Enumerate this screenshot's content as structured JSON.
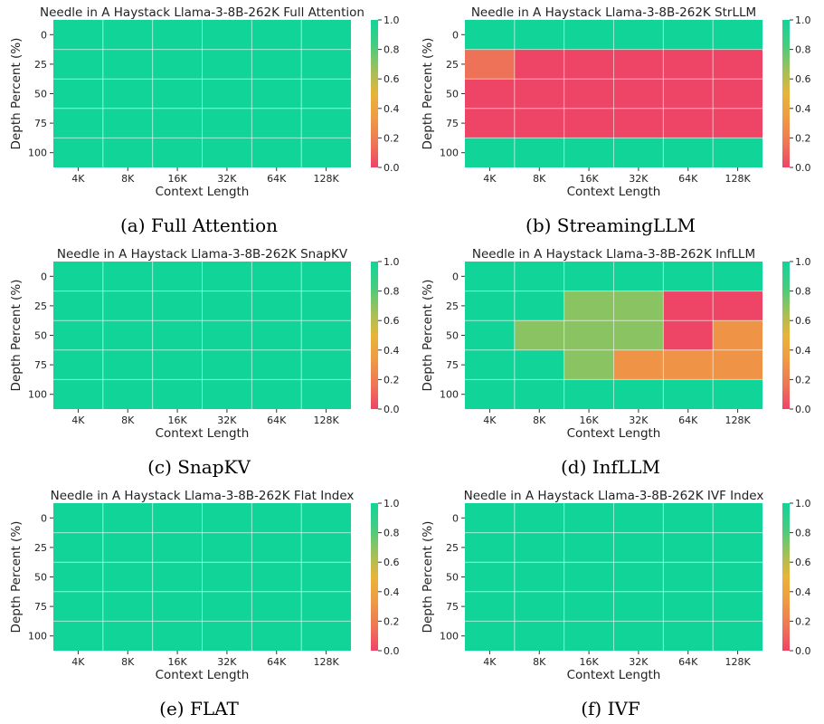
{
  "chart_data": [
    {
      "type": "heatmap",
      "title": "Needle in A Haystack Llama-3-8B-262K Full Attention",
      "caption": "(a) Full Attention",
      "xlabel": "Context Length",
      "ylabel": "Depth Percent (%)",
      "x_ticks": [
        "4K",
        "8K",
        "16K",
        "32K",
        "64K",
        "128K"
      ],
      "y_ticks": [
        "0",
        "25",
        "50",
        "75",
        "100"
      ],
      "colorbar_ticks": [
        "1.0",
        "0.8",
        "0.6",
        "0.4",
        "0.2",
        "0.0"
      ],
      "value_range": [
        0,
        1
      ],
      "values": [
        [
          1,
          1,
          1,
          1,
          1,
          1
        ],
        [
          1,
          1,
          1,
          1,
          1,
          1
        ],
        [
          1,
          1,
          1,
          1,
          1,
          1
        ],
        [
          1,
          1,
          1,
          1,
          1,
          1
        ],
        [
          1,
          1,
          1,
          1,
          1,
          1
        ]
      ]
    },
    {
      "type": "heatmap",
      "title": "Needle in A Haystack Llama-3-8B-262K StrLLM",
      "caption": "(b) StreamingLLM",
      "xlabel": "Context Length",
      "ylabel": "Depth Percent (%)",
      "x_ticks": [
        "4K",
        "8K",
        "16K",
        "32K",
        "64K",
        "128K"
      ],
      "y_ticks": [
        "0",
        "25",
        "50",
        "75",
        "100"
      ],
      "colorbar_ticks": [
        "1.0",
        "0.8",
        "0.6",
        "0.4",
        "0.2",
        "0.0"
      ],
      "value_range": [
        0,
        1
      ],
      "values": [
        [
          1,
          1,
          1,
          1,
          1,
          1
        ],
        [
          0.15,
          0,
          0,
          0,
          0,
          0
        ],
        [
          0,
          0,
          0,
          0,
          0,
          0
        ],
        [
          0,
          0,
          0,
          0,
          0,
          0
        ],
        [
          1,
          1,
          1,
          1,
          1,
          1
        ]
      ]
    },
    {
      "type": "heatmap",
      "title": "Needle in A Haystack Llama-3-8B-262K SnapKV",
      "caption": "(c) SnapKV",
      "xlabel": "Context Length",
      "ylabel": "Depth Percent (%)",
      "x_ticks": [
        "4K",
        "8K",
        "16K",
        "32K",
        "64K",
        "128K"
      ],
      "y_ticks": [
        "0",
        "25",
        "50",
        "75",
        "100"
      ],
      "colorbar_ticks": [
        "1.0",
        "0.8",
        "0.6",
        "0.4",
        "0.2",
        "0.0"
      ],
      "value_range": [
        0,
        1
      ],
      "values": [
        [
          1,
          1,
          1,
          1,
          1,
          1
        ],
        [
          1,
          1,
          1,
          1,
          1,
          1
        ],
        [
          1,
          1,
          1,
          1,
          1,
          1
        ],
        [
          1,
          1,
          1,
          1,
          1,
          1
        ],
        [
          1,
          1,
          1,
          1,
          1,
          1
        ]
      ]
    },
    {
      "type": "heatmap",
      "title": "Needle in A Haystack Llama-3-8B-262K InfLLM",
      "caption": "(d) InfLLM",
      "xlabel": "Context Length",
      "ylabel": "Depth Percent (%)",
      "x_ticks": [
        "4K",
        "8K",
        "16K",
        "32K",
        "64K",
        "128K"
      ],
      "y_ticks": [
        "0",
        "25",
        "50",
        "75",
        "100"
      ],
      "colorbar_ticks": [
        "1.0",
        "0.8",
        "0.6",
        "0.4",
        "0.2",
        "0.0"
      ],
      "value_range": [
        0,
        1
      ],
      "values": [
        [
          1,
          1,
          1,
          1,
          1,
          1
        ],
        [
          1,
          1,
          0.7,
          0.7,
          0,
          0
        ],
        [
          1,
          0.7,
          0.7,
          0.7,
          0,
          0.3
        ],
        [
          1,
          1,
          0.7,
          0.3,
          0.3,
          0.3
        ],
        [
          1,
          1,
          1,
          1,
          1,
          1
        ]
      ]
    },
    {
      "type": "heatmap",
      "title": "Needle in A Haystack Llama-3-8B-262K Flat Index",
      "caption": "(e) FLAT",
      "xlabel": "Context Length",
      "ylabel": "Depth Percent (%)",
      "x_ticks": [
        "4K",
        "8K",
        "16K",
        "32K",
        "64K",
        "128K"
      ],
      "y_ticks": [
        "0",
        "25",
        "50",
        "75",
        "100"
      ],
      "colorbar_ticks": [
        "1.0",
        "0.8",
        "0.6",
        "0.4",
        "0.2",
        "0.0"
      ],
      "value_range": [
        0,
        1
      ],
      "values": [
        [
          1,
          1,
          1,
          1,
          1,
          1
        ],
        [
          1,
          1,
          1,
          1,
          1,
          1
        ],
        [
          1,
          1,
          1,
          1,
          1,
          1
        ],
        [
          1,
          1,
          1,
          1,
          1,
          1
        ],
        [
          1,
          1,
          1,
          1,
          1,
          1
        ]
      ]
    },
    {
      "type": "heatmap",
      "title": "Needle in A Haystack Llama-3-8B-262K IVF Index",
      "caption": "(f) IVF",
      "xlabel": "Context Length",
      "ylabel": "Depth Percent (%)",
      "x_ticks": [
        "4K",
        "8K",
        "16K",
        "32K",
        "64K",
        "128K"
      ],
      "y_ticks": [
        "0",
        "25",
        "50",
        "75",
        "100"
      ],
      "colorbar_ticks": [
        "1.0",
        "0.8",
        "0.6",
        "0.4",
        "0.2",
        "0.0"
      ],
      "value_range": [
        0,
        1
      ],
      "values": [
        [
          1,
          1,
          1,
          1,
          1,
          1
        ],
        [
          1,
          1,
          1,
          1,
          1,
          1
        ],
        [
          1,
          1,
          1,
          1,
          1,
          1
        ],
        [
          1,
          1,
          1,
          1,
          1,
          1
        ],
        [
          1,
          1,
          1,
          1,
          1,
          1
        ]
      ]
    }
  ],
  "colormap": [
    "#ee4466",
    "#ee7755",
    "#ef9a44",
    "#e8b43a",
    "#9cc15a",
    "#44cc80",
    "#11d499"
  ]
}
